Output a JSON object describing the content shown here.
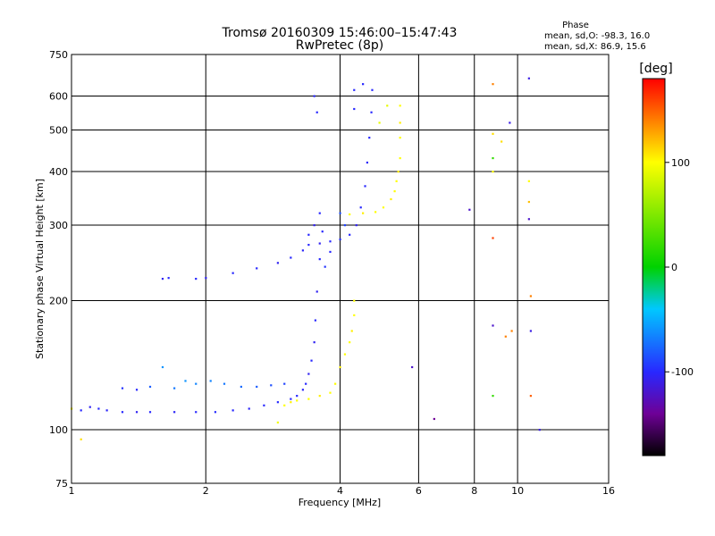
{
  "header": {
    "title_line1": "Tromsø 20160309 15:46:00–15:47:43",
    "title_line2": "RwPretec (8p)"
  },
  "phase_box": {
    "title": "Phase",
    "line1": "mean, sd,O: -98.3, 16.0",
    "line2": "mean, sd,X:  86.9, 15.6"
  },
  "colorbar": {
    "label": "[deg]",
    "ticks": [
      {
        "value": 100,
        "label": "100"
      },
      {
        "value": 0,
        "label": "0"
      },
      {
        "value": -100,
        "label": "-100"
      }
    ],
    "min": -180,
    "max": 180
  },
  "chart_data": {
    "type": "scatter",
    "xlabel": "Frequency [MHz]",
    "ylabel": "Stationary phase Virtual Height [km]",
    "xscale": "log",
    "yscale": "log",
    "xlim": [
      1,
      16
    ],
    "ylim": [
      75,
      750
    ],
    "x_ticks": [
      1,
      2,
      4,
      6,
      8,
      10,
      16
    ],
    "x_tick_labels": [
      "1",
      "2",
      "4",
      "6",
      "8",
      "10",
      "16"
    ],
    "y_ticks": [
      75,
      100,
      200,
      300,
      400,
      500,
      600,
      750
    ],
    "y_tick_labels": [
      "75",
      "100",
      "200",
      "300",
      "400",
      "500",
      "600",
      "750"
    ],
    "grid": true,
    "color_encoding": "phase_deg",
    "series": [
      {
        "points": [
          [
            1.05,
            111,
            -100
          ],
          [
            1.1,
            113,
            -105
          ],
          [
            1.15,
            112,
            -100
          ],
          [
            1.2,
            111,
            -102
          ],
          [
            1.3,
            110,
            -100
          ],
          [
            1.4,
            110,
            -105
          ],
          [
            1.5,
            110,
            -100
          ],
          [
            1.7,
            110,
            -103
          ],
          [
            1.9,
            110,
            -100
          ],
          [
            2.1,
            110,
            -98
          ],
          [
            2.3,
            111,
            -100
          ],
          [
            2.5,
            112,
            -102
          ],
          [
            2.7,
            114,
            -100
          ],
          [
            2.9,
            116,
            -98
          ],
          [
            3.1,
            118,
            -100
          ],
          [
            3.2,
            120,
            -100
          ],
          [
            3.3,
            124,
            -102
          ],
          [
            3.35,
            128,
            -100
          ],
          [
            3.4,
            135,
            -105
          ],
          [
            3.45,
            145,
            -100
          ],
          [
            3.5,
            160,
            -105
          ],
          [
            3.52,
            180,
            -100
          ],
          [
            3.55,
            210,
            -105
          ],
          [
            3.6,
            250,
            -100
          ],
          [
            3.4,
            270,
            -100
          ],
          [
            3.6,
            272,
            -105
          ],
          [
            3.8,
            275,
            -100
          ],
          [
            4.0,
            278,
            -98
          ],
          [
            4.2,
            285,
            -100
          ],
          [
            4.35,
            300,
            -105
          ],
          [
            4.45,
            330,
            -100
          ],
          [
            4.55,
            370,
            -100
          ],
          [
            4.6,
            420,
            -102
          ],
          [
            4.65,
            480,
            -100
          ],
          [
            4.7,
            550,
            -100
          ],
          [
            4.72,
            620,
            -100
          ],
          [
            1.6,
            225,
            -105
          ],
          [
            1.65,
            226,
            -100
          ],
          [
            1.9,
            225,
            -100
          ],
          [
            2.0,
            226,
            -105
          ],
          [
            2.3,
            232,
            -100
          ],
          [
            2.6,
            238,
            -100
          ],
          [
            2.9,
            245,
            -105
          ],
          [
            3.1,
            252,
            -100
          ],
          [
            3.3,
            262,
            -102
          ],
          [
            3.4,
            285,
            -100
          ],
          [
            3.5,
            300,
            -105
          ],
          [
            3.6,
            320,
            -100
          ],
          [
            1.3,
            125,
            -95
          ],
          [
            1.4,
            124,
            -100
          ],
          [
            1.5,
            126,
            -80
          ],
          [
            1.6,
            140,
            -60
          ],
          [
            1.7,
            125,
            -70
          ],
          [
            1.8,
            130,
            -60
          ],
          [
            1.9,
            128,
            -65
          ],
          [
            2.05,
            130,
            -65
          ],
          [
            2.2,
            128,
            -70
          ],
          [
            2.4,
            126,
            -75
          ],
          [
            2.6,
            126,
            -80
          ],
          [
            2.8,
            127,
            -85
          ],
          [
            3.0,
            128,
            -90
          ],
          [
            3.5,
            600,
            -100
          ],
          [
            3.55,
            550,
            -100
          ],
          [
            4.3,
            620,
            -100
          ],
          [
            4.5,
            640,
            -100
          ],
          [
            4.3,
            560,
            -100
          ],
          [
            3.65,
            290,
            -100
          ],
          [
            3.7,
            240,
            -95
          ],
          [
            3.8,
            260,
            -100
          ],
          [
            4.1,
            300,
            -90
          ],
          [
            4.0,
            320,
            -85
          ],
          [
            5.8,
            140,
            -120
          ],
          [
            6.5,
            106,
            -140
          ],
          [
            7.8,
            326,
            -120
          ],
          [
            8.8,
            175,
            -120
          ],
          [
            9.6,
            520,
            -110
          ],
          [
            10.6,
            660,
            -110
          ],
          [
            10.6,
            310,
            -120
          ],
          [
            10.7,
            170,
            -110
          ],
          [
            11.2,
            100,
            -110
          ]
        ]
      },
      {
        "points": [
          [
            3.0,
            114,
            100
          ],
          [
            3.1,
            116,
            105
          ],
          [
            3.2,
            117,
            100
          ],
          [
            3.4,
            118,
            100
          ],
          [
            3.6,
            120,
            105
          ],
          [
            3.8,
            122,
            100
          ],
          [
            3.9,
            128,
            100
          ],
          [
            4.0,
            140,
            105
          ],
          [
            4.1,
            150,
            100
          ],
          [
            4.2,
            160,
            100
          ],
          [
            4.25,
            170,
            105
          ],
          [
            4.3,
            185,
            100
          ],
          [
            4.3,
            200,
            100
          ],
          [
            4.2,
            318,
            100
          ],
          [
            4.5,
            320,
            105
          ],
          [
            4.8,
            322,
            100
          ],
          [
            5.0,
            330,
            100
          ],
          [
            5.2,
            345,
            105
          ],
          [
            5.3,
            360,
            100
          ],
          [
            5.35,
            380,
            100
          ],
          [
            5.4,
            400,
            105
          ],
          [
            5.45,
            430,
            100
          ],
          [
            5.45,
            480,
            100
          ],
          [
            5.45,
            520,
            105
          ],
          [
            5.45,
            570,
            100
          ],
          [
            4.9,
            520,
            90
          ],
          [
            5.1,
            570,
            90
          ],
          [
            1.05,
            95,
            110
          ],
          [
            1.0,
            112,
            100
          ],
          [
            2.9,
            104,
            95
          ],
          [
            8.8,
            640,
            140
          ],
          [
            8.8,
            490,
            110
          ],
          [
            8.8,
            400,
            100
          ],
          [
            9.2,
            470,
            110
          ],
          [
            10.6,
            380,
            100
          ],
          [
            10.6,
            340,
            120
          ],
          [
            10.7,
            205,
            140
          ],
          [
            9.4,
            165,
            140
          ],
          [
            9.7,
            170,
            140
          ],
          [
            10.7,
            120,
            150
          ],
          [
            8.8,
            280,
            160
          ],
          [
            8.8,
            430,
            20
          ],
          [
            8.8,
            120,
            20
          ]
        ]
      }
    ]
  }
}
